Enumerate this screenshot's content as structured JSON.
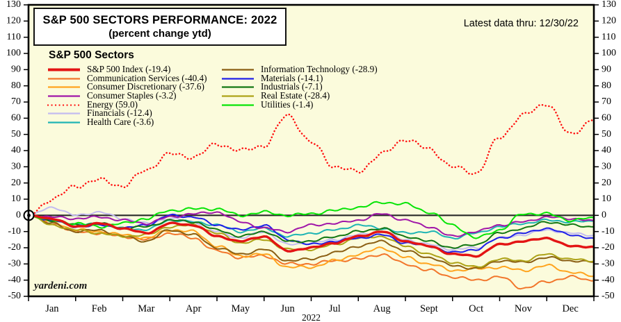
{
  "chart_data": {
    "type": "line",
    "title": "S&P 500 SECTORS PERFORMANCE: 2022",
    "subtitle": "(percent change ytd)",
    "note": "Latest data thru: 12/30/22",
    "watermark": "yardeni.com",
    "legend_title": "S&P 500 Sectors",
    "colors": {
      "plot_bg": "#FBFBDC",
      "frame": "#000000",
      "zero_line": "#2A2A2A"
    },
    "x_axis": {
      "tick_labels": [
        "Jan",
        "Feb",
        "Mar",
        "Apr",
        "May",
        "Jun",
        "Jul",
        "Aug",
        "Sept",
        "Oct",
        "Nov",
        "Dec"
      ],
      "year_label": "2022",
      "unit": "month"
    },
    "y_axis": {
      "min": -50,
      "max": 130,
      "tick_step": 10,
      "labels_both_sides": true,
      "zero_line": true
    },
    "origin_marker": {
      "x": 0,
      "y": 0
    },
    "x": [
      0,
      0.5,
      1,
      1.5,
      2,
      2.5,
      3,
      3.5,
      4,
      4.5,
      5,
      5.5,
      6,
      6.5,
      7,
      7.5,
      8,
      8.5,
      9,
      9.5,
      10,
      10.5,
      11,
      11.5,
      12
    ],
    "series": [
      {
        "name": "S&P 500 Index",
        "ytd": -19.4,
        "label": "S&P 500 Index (-19.4)",
        "color": "#E31414",
        "line_width": 3.4,
        "line_style": "solid",
        "legend_column": "left",
        "z": 5,
        "values": [
          0,
          -2,
          -7,
          -5,
          -8,
          -11,
          -5,
          -6,
          -13,
          -16,
          -13,
          -22,
          -20,
          -17,
          -13,
          -10,
          -16,
          -19,
          -24,
          -25,
          -18,
          -16,
          -14,
          -19,
          -19.4
        ]
      },
      {
        "name": "Communication Services",
        "ytd": -40.4,
        "label": "Communication Services (-40.4)",
        "color": "#F2762B",
        "line_width": 2,
        "line_style": "solid",
        "legend_column": "left",
        "z": 1,
        "values": [
          0,
          -5,
          -10,
          -11,
          -13,
          -15,
          -11,
          -14,
          -22,
          -26,
          -25,
          -30,
          -30,
          -28,
          -27,
          -24,
          -30,
          -34,
          -38,
          -40,
          -38,
          -45,
          -41,
          -38,
          -40.4
        ]
      },
      {
        "name": "Consumer Discretionary",
        "ytd": -37.6,
        "label": "Consumer Discretionary (-37.6)",
        "color": "#FFA41E",
        "line_width": 2,
        "line_style": "solid",
        "legend_column": "left",
        "z": 1,
        "values": [
          0,
          -4,
          -9,
          -10,
          -12,
          -14,
          -9,
          -10,
          -19,
          -25,
          -24,
          -32,
          -32,
          -28,
          -24,
          -20,
          -26,
          -30,
          -34,
          -33,
          -32,
          -34,
          -31,
          -35,
          -37.6
        ]
      },
      {
        "name": "Consumer Staples",
        "ytd": -3.2,
        "label": "Consumer Staples (-3.2)",
        "color": "#A016A8",
        "line_width": 2,
        "line_style": "solid",
        "legend_column": "left",
        "z": 4,
        "values": [
          0,
          -1,
          -2,
          -1,
          -3,
          -5,
          -1,
          1,
          2,
          -4,
          -8,
          -10,
          -6,
          -5,
          -3,
          1,
          -3,
          -7,
          -13,
          -10,
          -6,
          -4,
          -1,
          -2,
          -3.2
        ]
      },
      {
        "name": "Energy",
        "ytd": 59.0,
        "label": "Energy (59.0)",
        "color": "#FF0F0F",
        "line_width": 2.5,
        "line_style": "dotted",
        "legend_column": "left",
        "z": 6,
        "values": [
          0,
          10,
          18,
          22,
          18,
          28,
          38,
          36,
          44,
          40,
          43,
          62,
          45,
          30,
          27,
          38,
          47,
          41,
          30,
          26,
          48,
          62,
          69,
          50,
          59
        ]
      },
      {
        "name": "Financials",
        "ytd": -12.4,
        "label": "Financials (-12.4)",
        "color": "#C3BBF0",
        "line_width": 2,
        "line_style": "solid",
        "legend_column": "left",
        "z": 2,
        "values": [
          0,
          5,
          0,
          2,
          -2,
          -5,
          -2,
          -4,
          -10,
          -14,
          -10,
          -18,
          -17,
          -15,
          -12,
          -10,
          -15,
          -18,
          -21,
          -20,
          -14,
          -12,
          -9,
          -11,
          -12.4
        ]
      },
      {
        "name": "Health Care",
        "ytd": -3.6,
        "label": "Health Care (-3.6)",
        "color": "#1EB4B4",
        "line_width": 2,
        "line_style": "solid",
        "legend_column": "left",
        "z": 3,
        "values": [
          0,
          -3,
          -6,
          -5,
          -8,
          -9,
          -3,
          -4,
          -6,
          -10,
          -8,
          -13,
          -11,
          -9,
          -6,
          -8,
          -11,
          -10,
          -14,
          -11,
          -7,
          -5,
          -3,
          -4,
          -3.6
        ]
      },
      {
        "name": "Information Technology",
        "ytd": -28.9,
        "label": "Information Technology (-28.9)",
        "color": "#8A5E12",
        "line_width": 2,
        "line_style": "solid",
        "legend_column": "right",
        "z": 1,
        "values": [
          0,
          -5,
          -10,
          -9,
          -13,
          -16,
          -9,
          -12,
          -20,
          -24,
          -21,
          -28,
          -27,
          -23,
          -19,
          -16,
          -22,
          -26,
          -31,
          -33,
          -28,
          -29,
          -26,
          -28,
          -28.9
        ]
      },
      {
        "name": "Materials",
        "ytd": -14.1,
        "label": "Materials (-14.1)",
        "color": "#1F1FE8",
        "line_width": 2,
        "line_style": "solid",
        "legend_column": "right",
        "z": 3,
        "values": [
          0,
          -3,
          -7,
          -6,
          -8,
          -6,
          0,
          -1,
          -6,
          -9,
          -6,
          -15,
          -18,
          -16,
          -14,
          -12,
          -17,
          -19,
          -23,
          -21,
          -14,
          -11,
          -8,
          -12,
          -14.1
        ]
      },
      {
        "name": "Industrials",
        "ytd": -7.1,
        "label": "Industrials (-7.1)",
        "color": "#137713",
        "line_width": 2,
        "line_style": "solid",
        "legend_column": "right",
        "z": 3,
        "values": [
          0,
          -3,
          -6,
          -5,
          -8,
          -7,
          -3,
          -4,
          -9,
          -13,
          -10,
          -16,
          -16,
          -13,
          -10,
          -8,
          -13,
          -16,
          -20,
          -18,
          -11,
          -8,
          -4,
          -6,
          -7.1
        ]
      },
      {
        "name": "Real Estate",
        "ytd": -28.4,
        "label": "Real Estate (-28.4)",
        "color": "#ADA216",
        "line_width": 2,
        "line_style": "solid",
        "legend_column": "right",
        "z": 1,
        "values": [
          0,
          -6,
          -9,
          -11,
          -13,
          -12,
          -7,
          -6,
          -11,
          -17,
          -15,
          -21,
          -21,
          -18,
          -14,
          -13,
          -19,
          -24,
          -29,
          -32,
          -27,
          -28,
          -24,
          -27,
          -28.4
        ]
      },
      {
        "name": "Utilities",
        "ytd": -1.4,
        "label": "Utilities (-1.4)",
        "color": "#06E406",
        "line_width": 2,
        "line_style": "solid",
        "legend_column": "right",
        "z": 4,
        "values": [
          0,
          -3,
          -5,
          -7,
          -5,
          -2,
          3,
          4,
          4,
          0,
          2,
          0,
          1,
          3,
          5,
          8,
          7,
          2,
          -6,
          -14,
          -9,
          1,
          1,
          -3,
          -1.4
        ]
      }
    ]
  }
}
